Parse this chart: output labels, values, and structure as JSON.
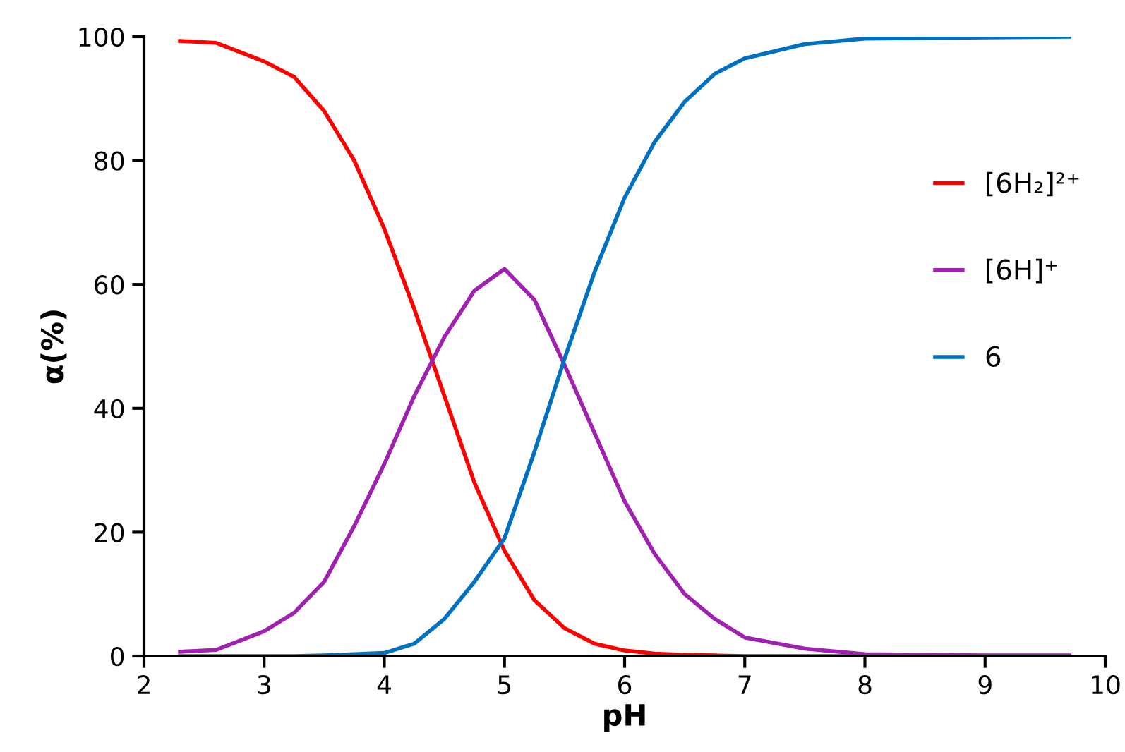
{
  "chart_data": {
    "type": "line",
    "xlabel": "pH",
    "ylabel": "α(%)",
    "x": [
      2.3,
      2.6,
      2.8,
      3,
      3.25,
      3.5,
      3.75,
      4,
      4.25,
      4.5,
      4.75,
      5,
      5.25,
      5.5,
      5.75,
      6,
      6.25,
      6.5,
      6.75,
      7,
      7.5,
      8,
      9,
      9.7
    ],
    "series": [
      {
        "name": "[6H₂]²⁺",
        "color": "#ff0000",
        "values": [
          99.3,
          99,
          97.5,
          96,
          93.5,
          88,
          80,
          69,
          56,
          42,
          28,
          17,
          9,
          4.5,
          2,
          0.9,
          0.4,
          0.2,
          0.1,
          0,
          0,
          0,
          0,
          0
        ]
      },
      {
        "name": "[6H]⁺",
        "color": "#a020b0",
        "values": [
          0.7,
          1,
          2.5,
          4,
          7,
          12,
          21,
          31,
          42,
          51.5,
          59,
          62.5,
          57.5,
          47,
          36,
          25,
          16.5,
          10,
          6,
          3,
          1.2,
          0.3,
          0.1,
          0.1
        ]
      },
      {
        "name": "6",
        "color": "#0070c0",
        "values": [
          0,
          0,
          0,
          0,
          0,
          0.1,
          0.3,
          0.5,
          2,
          6,
          12,
          19,
          33,
          48,
          62,
          74,
          83,
          89.5,
          94,
          96.5,
          98.8,
          99.7,
          99.9,
          100
        ]
      }
    ],
    "xlim": [
      2,
      10
    ],
    "xticks": [
      2,
      3,
      4,
      5,
      6,
      7,
      8,
      9,
      10
    ],
    "ylim": [
      0,
      100
    ],
    "yticks": [
      0,
      20,
      40,
      60,
      80,
      100
    ],
    "grid": false,
    "legend": "right",
    "marker": "none",
    "line_style": "solid"
  }
}
